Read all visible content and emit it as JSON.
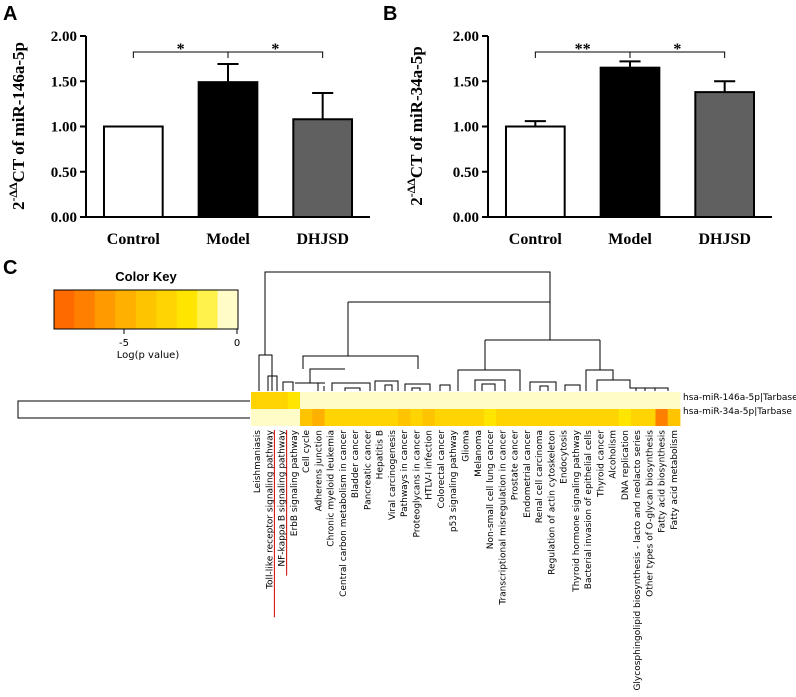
{
  "panels": {
    "a": "A",
    "b": "B",
    "c": "C"
  },
  "chart_data": [
    {
      "type": "bar",
      "panel": "A",
      "ylabel_prefix": "2",
      "ylabel_super": "-ΔΔ",
      "ylabel_main": "CT of miR-146a-5p",
      "categories": [
        "Control",
        "Model",
        "DHJSD"
      ],
      "values": [
        1.0,
        1.49,
        1.08
      ],
      "errors": [
        0.0,
        0.2,
        0.29
      ],
      "bar_colors": [
        "#ffffff",
        "#000000",
        "#606060"
      ],
      "yticks": [
        "0.00",
        "0.50",
        "1.00",
        "1.50",
        "2.00"
      ],
      "ylim": [
        0,
        2.0
      ],
      "significance": [
        {
          "from": 0,
          "to": 1,
          "label": "*"
        },
        {
          "from": 1,
          "to": 2,
          "label": "*"
        }
      ]
    },
    {
      "type": "bar",
      "panel": "B",
      "ylabel_prefix": "2",
      "ylabel_super": "-ΔΔ",
      "ylabel_main": "CT of miR-34a-5p",
      "categories": [
        "Control",
        "Model",
        "DHJSD"
      ],
      "values": [
        1.0,
        1.65,
        1.38
      ],
      "errors": [
        0.06,
        0.07,
        0.12
      ],
      "bar_colors": [
        "#ffffff",
        "#000000",
        "#606060"
      ],
      "yticks": [
        "0.00",
        "0.50",
        "1.00",
        "1.50",
        "2.00"
      ],
      "ylim": [
        0,
        2.0
      ],
      "significance": [
        {
          "from": 0,
          "to": 1,
          "label": "**"
        },
        {
          "from": 1,
          "to": 2,
          "label": "*"
        }
      ]
    },
    {
      "type": "heatmap",
      "panel": "C",
      "color_key": {
        "title": "Color Key",
        "ticks": [
          "-5",
          "0"
        ],
        "xlabel": "Log(p value)",
        "range": [
          -8.5,
          0
        ],
        "colors": [
          "#ff6a00",
          "#ff8000",
          "#ff9a00",
          "#ffb000",
          "#ffc400",
          "#ffd400",
          "#ffe500",
          "#fff24a",
          "#fffcc8"
        ]
      },
      "rows": [
        "hsa-miR-146a-5p|Tarbase",
        "hsa-miR-34a-5p|Tarbase"
      ],
      "columns": [
        "Leishmaniasis",
        "Toll-like receptor signaling pathway",
        "NF-kappa B signaling pathway",
        "ErbB signaling pathway",
        "Cell cycle",
        "Adherens junction",
        "Chronic myeloid leukemia",
        "Central carbon metabolism in cancer",
        "Bladder cancer",
        "Pancreatic cancer",
        "Hepatitis B",
        "Viral carcinogenesis",
        "Pathways in cancer",
        "Proteoglycans in cancer",
        "HTLV-I infection",
        "Colorectal cancer",
        "p53 signaling pathway",
        "Glioma",
        "Melanoma",
        "Non-small cell lung cancer",
        "Transcriptional misregulation in cancer",
        "Prostate cancer",
        "Endometrial cancer",
        "Renal cell carcinoma",
        "Regulation of actin cytoskeleton",
        "Endocytosis",
        "Thyroid hormone signaling pathway",
        "Bacterial invasion of epithelial cells",
        "Thyroid cancer",
        "Alcoholism",
        "DNA replication",
        "Glycosphingolipid biosynthesis - lacto and neolacto series",
        "Other types of O-glycan biosynthesis",
        "Fatty acid biosynthesis",
        "Fatty acid metabolism"
      ],
      "values": [
        [
          -3.2,
          -3.2,
          -3.6,
          -2.6,
          -0.2,
          -0.2,
          -0.2,
          -0.2,
          -0.2,
          -0.2,
          -0.2,
          -0.2,
          -0.2,
          -0.2,
          -0.2,
          -0.2,
          -0.2,
          -0.2,
          -0.2,
          -0.2,
          -0.2,
          -0.2,
          -0.2,
          -0.2,
          -0.2,
          -0.2,
          -0.2,
          -0.2,
          -0.2,
          -0.2,
          -0.2,
          -0.2,
          -0.2,
          -0.2,
          -0.2
        ],
        [
          -0.2,
          -0.2,
          -0.2,
          -0.2,
          -4.2,
          -5.6,
          -3.5,
          -3.3,
          -3.0,
          -3.3,
          -3.0,
          -3.3,
          -4.0,
          -3.6,
          -4.6,
          -3.0,
          -3.3,
          -3.7,
          -3.2,
          -2.8,
          -3.2,
          -3.4,
          -3.2,
          -3.0,
          -3.5,
          -3.7,
          -3.0,
          -3.2,
          -3.3,
          -3.7,
          -2.7,
          -3.1,
          -3.0,
          -7.3,
          -4.4
        ]
      ],
      "underlined_columns": [
        "Toll-like receptor signaling pathway",
        "NF-kappa B signaling pathway"
      ],
      "underline_color": "#d00000"
    }
  ]
}
